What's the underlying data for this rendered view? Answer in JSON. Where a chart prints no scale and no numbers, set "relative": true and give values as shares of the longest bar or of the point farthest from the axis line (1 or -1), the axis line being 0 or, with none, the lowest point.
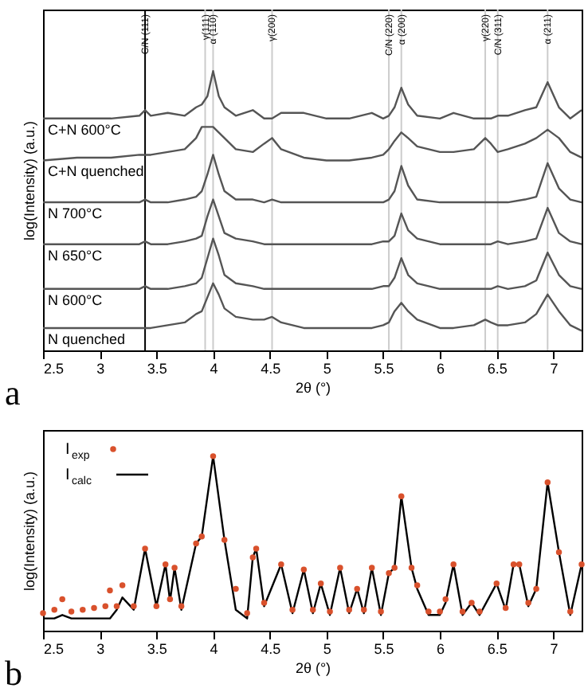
{
  "chart_data": [
    {
      "type": "line",
      "relative": true,
      "xlabel": "2θ (°)",
      "ylabel": "log(Intensity) (a.u.)",
      "xlim": [
        2.5,
        7.25
      ],
      "xticks": [
        2.5,
        3,
        3.5,
        4,
        4.5,
        5,
        5.5,
        6,
        6.5,
        7
      ],
      "annotations": [
        "a"
      ],
      "x": [
        2.5,
        2.8,
        3.1,
        3.35,
        3.4,
        3.45,
        3.6,
        3.75,
        3.85,
        3.9,
        3.95,
        4.0,
        4.05,
        4.1,
        4.2,
        4.35,
        4.45,
        4.52,
        4.6,
        4.8,
        5.0,
        5.2,
        5.4,
        5.5,
        5.55,
        5.6,
        5.66,
        5.72,
        5.8,
        6.0,
        6.12,
        6.3,
        6.4,
        6.45,
        6.51,
        6.6,
        6.75,
        6.85,
        6.95,
        7.05,
        7.15,
        7.25
      ],
      "series": [
        {
          "name": "C+N 600°C",
          "color": "#555555",
          "values": [
            0.83,
            0.83,
            0.83,
            0.84,
            0.86,
            0.84,
            0.85,
            0.84,
            0.87,
            0.88,
            0.91,
            1,
            0.91,
            0.87,
            0.84,
            0.86,
            0.83,
            0.83,
            0.85,
            0.85,
            0.83,
            0.83,
            0.85,
            0.83,
            0.84,
            0.87,
            0.94,
            0.88,
            0.84,
            0.83,
            0.85,
            0.83,
            0.83,
            0.83,
            0.84,
            0.84,
            0.86,
            0.87,
            0.96,
            0.87,
            0.83,
            0.86
          ]
        },
        {
          "name": "C+N quenched",
          "color": "#555555",
          "values": [
            0.68,
            0.69,
            0.69,
            0.7,
            0.7,
            0.7,
            0.71,
            0.72,
            0.76,
            0.8,
            0.8,
            0.8,
            0.78,
            0.76,
            0.72,
            0.71,
            0.74,
            0.76,
            0.72,
            0.69,
            0.68,
            0.68,
            0.69,
            0.7,
            0.72,
            0.75,
            0.78,
            0.76,
            0.73,
            0.71,
            0.71,
            0.72,
            0.76,
            0.74,
            0.71,
            0.72,
            0.74,
            0.76,
            0.79,
            0.76,
            0.71,
            0.69
          ]
        },
        {
          "name": "N 700°C",
          "color": "#555555",
          "values": [
            0.53,
            0.53,
            0.53,
            0.53,
            0.54,
            0.53,
            0.53,
            0.54,
            0.55,
            0.57,
            0.63,
            0.7,
            0.63,
            0.57,
            0.54,
            0.54,
            0.53,
            0.54,
            0.53,
            0.53,
            0.53,
            0.53,
            0.53,
            0.53,
            0.54,
            0.57,
            0.66,
            0.59,
            0.54,
            0.53,
            0.53,
            0.53,
            0.53,
            0.53,
            0.53,
            0.53,
            0.54,
            0.55,
            0.67,
            0.58,
            0.54,
            0.53
          ]
        },
        {
          "name": "N 650°C",
          "color": "#555555",
          "values": [
            0.38,
            0.38,
            0.38,
            0.38,
            0.39,
            0.38,
            0.38,
            0.39,
            0.4,
            0.41,
            0.48,
            0.54,
            0.48,
            0.42,
            0.4,
            0.39,
            0.38,
            0.38,
            0.38,
            0.38,
            0.38,
            0.38,
            0.38,
            0.39,
            0.39,
            0.41,
            0.49,
            0.43,
            0.4,
            0.38,
            0.38,
            0.38,
            0.38,
            0.38,
            0.39,
            0.38,
            0.39,
            0.4,
            0.51,
            0.42,
            0.39,
            0.38
          ]
        },
        {
          "name": "N 600°C",
          "color": "#555555",
          "values": [
            0.22,
            0.22,
            0.22,
            0.22,
            0.23,
            0.22,
            0.22,
            0.23,
            0.24,
            0.26,
            0.33,
            0.4,
            0.34,
            0.27,
            0.24,
            0.23,
            0.22,
            0.22,
            0.22,
            0.22,
            0.22,
            0.22,
            0.22,
            0.23,
            0.23,
            0.26,
            0.33,
            0.27,
            0.24,
            0.22,
            0.22,
            0.22,
            0.22,
            0.22,
            0.23,
            0.22,
            0.23,
            0.25,
            0.35,
            0.27,
            0.23,
            0.22
          ]
        },
        {
          "name": "N quenched",
          "color": "#555555",
          "values": [
            0.08,
            0.08,
            0.08,
            0.08,
            0.08,
            0.08,
            0.09,
            0.1,
            0.13,
            0.14,
            0.19,
            0.24,
            0.2,
            0.15,
            0.12,
            0.11,
            0.11,
            0.12,
            0.1,
            0.08,
            0.08,
            0.08,
            0.08,
            0.09,
            0.1,
            0.14,
            0.17,
            0.14,
            0.11,
            0.08,
            0.08,
            0.09,
            0.11,
            0.1,
            0.09,
            0.09,
            0.1,
            0.13,
            0.2,
            0.14,
            0.09,
            0.07
          ]
        }
      ],
      "ref_lines": [
        {
          "axis": "x",
          "value": 3.4,
          "label": "C/N (111)",
          "color": "#000000"
        },
        {
          "axis": "x",
          "value": 3.93,
          "label": "γ(111)",
          "color": "#cccccc"
        },
        {
          "axis": "x",
          "value": 4.0,
          "label": "α (110)",
          "color": "#cccccc"
        },
        {
          "axis": "x",
          "value": 4.52,
          "label": "γ(200)",
          "color": "#cccccc"
        },
        {
          "axis": "x",
          "value": 5.55,
          "label": "C/N (220)",
          "color": "#cccccc"
        },
        {
          "axis": "x",
          "value": 5.66,
          "label": "α (200)",
          "color": "#cccccc"
        },
        {
          "axis": "x",
          "value": 6.4,
          "label": "γ(220)",
          "color": "#cccccc"
        },
        {
          "axis": "x",
          "value": 6.51,
          "label": "C/N (311)",
          "color": "#cccccc"
        },
        {
          "axis": "x",
          "value": 6.95,
          "label": "α (211)",
          "color": "#cccccc"
        }
      ]
    },
    {
      "type": "line",
      "relative": true,
      "xlabel": "2θ (°)",
      "ylabel": "log(Intensity) (a.u.)",
      "xlim": [
        2.5,
        7.25
      ],
      "xticks": [
        2.5,
        3,
        3.5,
        4,
        4.5,
        5,
        5.5,
        6,
        6.5,
        7
      ],
      "annotations": [
        "b"
      ],
      "legend": "top left",
      "x": [
        2.5,
        2.6,
        2.67,
        2.75,
        2.85,
        2.95,
        3.05,
        3.09,
        3.15,
        3.2,
        3.3,
        3.4,
        3.5,
        3.58,
        3.62,
        3.66,
        3.72,
        3.85,
        3.9,
        4.0,
        4.1,
        4.2,
        4.3,
        4.35,
        4.38,
        4.45,
        4.6,
        4.7,
        4.8,
        4.88,
        4.95,
        5.03,
        5.12,
        5.2,
        5.27,
        5.33,
        5.4,
        5.48,
        5.55,
        5.6,
        5.66,
        5.75,
        5.8,
        5.9,
        6.0,
        6.05,
        6.12,
        6.2,
        6.28,
        6.35,
        6.5,
        6.58,
        6.65,
        6.7,
        6.78,
        6.85,
        6.95,
        7.05,
        7.15,
        7.25
      ],
      "series": [
        {
          "name": "I$_{exp}$",
          "type": "scatter",
          "marker": "circle",
          "color": "#d9512c",
          "values": [
            0.1,
            0.12,
            0.18,
            0.11,
            0.12,
            0.13,
            0.14,
            0.23,
            0.14,
            0.26,
            0.14,
            0.47,
            0.14,
            0.38,
            0.18,
            0.36,
            0.14,
            0.5,
            0.54,
            1,
            0.52,
            0.24,
            0.1,
            0.42,
            0.47,
            0.16,
            0.38,
            0.12,
            0.35,
            0.12,
            0.27,
            0.11,
            0.36,
            0.12,
            0.24,
            0.12,
            0.36,
            0.11,
            0.33,
            0.36,
            0.77,
            0.36,
            0.26,
            0.11,
            0.11,
            0.18,
            0.38,
            0.11,
            0.16,
            0.11,
            0.27,
            0.13,
            0.38,
            0.38,
            0.16,
            0.24,
            0.85,
            0.45,
            0.11,
            0.38
          ]
        },
        {
          "name": "I$_{calc}$",
          "type": "line",
          "color": "#000000",
          "values": [
            0.07,
            0.07,
            0.09,
            0.07,
            0.07,
            0.07,
            0.07,
            0.07,
            0.12,
            0.19,
            0.12,
            0.47,
            0.14,
            0.38,
            0.17,
            0.36,
            0.12,
            0.5,
            0.54,
            1,
            0.52,
            0.12,
            0.07,
            0.42,
            0.47,
            0.14,
            0.38,
            0.1,
            0.35,
            0.1,
            0.27,
            0.09,
            0.36,
            0.1,
            0.24,
            0.1,
            0.36,
            0.09,
            0.33,
            0.36,
            0.77,
            0.36,
            0.24,
            0.09,
            0.09,
            0.16,
            0.38,
            0.09,
            0.16,
            0.09,
            0.27,
            0.12,
            0.38,
            0.38,
            0.14,
            0.24,
            0.85,
            0.45,
            0.09,
            0.38
          ]
        }
      ]
    }
  ]
}
